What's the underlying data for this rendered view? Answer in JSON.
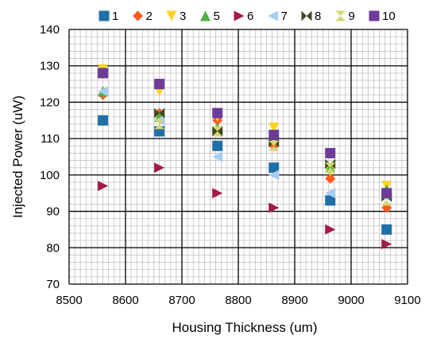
{
  "chart_data": {
    "type": "scatter",
    "xlabel": "Housing Thickness (um)",
    "ylabel": "Injected Power (uW)",
    "xlim": [
      8500,
      9100
    ],
    "ylim": [
      70,
      140
    ],
    "x_ticks": [
      8500,
      8600,
      8700,
      8800,
      8900,
      9000,
      9100
    ],
    "y_ticks": [
      70,
      80,
      90,
      100,
      110,
      120,
      130,
      140
    ],
    "x_minor_step": 10,
    "y_minor_step": 2,
    "grid": true,
    "legend_position": "top",
    "series": [
      {
        "name": "1",
        "color": "#1f6fa8",
        "marker": "square",
        "x": [
          8560,
          8660,
          8763,
          8863,
          8963,
          9063
        ],
        "y": [
          115,
          112,
          108,
          102,
          93,
          85
        ]
      },
      {
        "name": "2",
        "color": "#ff5a1f",
        "marker": "diamond",
        "x": [
          8560,
          8660,
          8763,
          8863,
          8963,
          9063
        ],
        "y": [
          122,
          117,
          115,
          108,
          99,
          91
        ]
      },
      {
        "name": "3",
        "color": "#ffd21f",
        "marker": "triangle-down",
        "x": [
          8560,
          8660,
          8763,
          8863,
          8963,
          9063
        ],
        "y": [
          129,
          123,
          116,
          113,
          101,
          97
        ]
      },
      {
        "name": "5",
        "color": "#4caf3e",
        "marker": "triangle-up",
        "x": [
          8560,
          8660,
          8763,
          8863,
          8963,
          9063
        ],
        "y": [
          123,
          116,
          113,
          111,
          102,
          96
        ]
      },
      {
        "name": "6",
        "color": "#a31a4a",
        "marker": "triangle-right",
        "x": [
          8560,
          8660,
          8763,
          8863,
          8963,
          9063
        ],
        "y": [
          97,
          102,
          95,
          91,
          85,
          81
        ]
      },
      {
        "name": "7",
        "color": "#a9cdf2",
        "marker": "triangle-left",
        "x": [
          8560,
          8660,
          8763,
          8863,
          8963,
          9063
        ],
        "y": [
          123,
          115,
          105,
          100,
          95,
          94
        ]
      },
      {
        "name": "8",
        "color": "#3f4a1c",
        "marker": "bowtie",
        "x": [
          8560,
          8660,
          8763,
          8863,
          8963,
          9063
        ],
        "y": [
          128,
          117,
          112,
          109,
          103,
          94
        ]
      },
      {
        "name": "9",
        "color": "#d6d676",
        "marker": "hourglass",
        "x": [
          8560,
          8660,
          8763,
          8863,
          8963,
          9063
        ],
        "y": [
          128,
          114,
          112,
          108,
          102,
          93
        ]
      },
      {
        "name": "10",
        "color": "#6b3d99",
        "marker": "square",
        "x": [
          8560,
          8660,
          8763,
          8863,
          8963,
          9063
        ],
        "y": [
          128,
          125,
          117,
          111,
          106,
          95
        ]
      }
    ]
  }
}
